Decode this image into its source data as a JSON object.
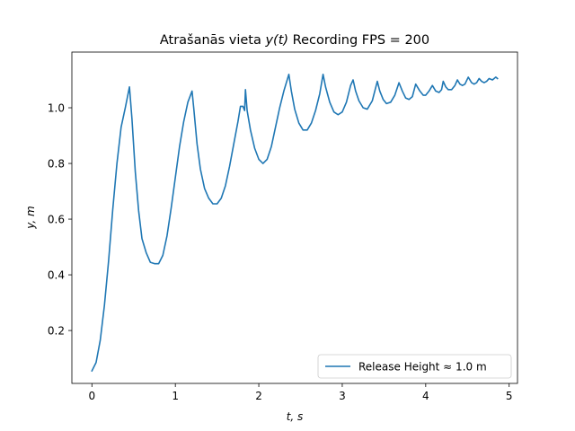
{
  "chart_data": {
    "type": "line",
    "title_prefix": "Atrašanās vieta ",
    "title_math": "y(t)",
    "title_suffix": " Recording FPS = 200",
    "xlabel": "t, s",
    "ylabel": "y, m",
    "xlim": [
      -0.24,
      5.1
    ],
    "ylim": [
      0.01,
      1.2
    ],
    "xticks": [
      0,
      1,
      2,
      3,
      4,
      5
    ],
    "xtick_labels": [
      "0",
      "1",
      "2",
      "3",
      "4",
      "5"
    ],
    "yticks": [
      0.2,
      0.4,
      0.6,
      0.8,
      1.0
    ],
    "ytick_labels": [
      "0.2",
      "0.4",
      "0.6",
      "0.8",
      "1.0"
    ],
    "grid": false,
    "legend_position": "lower-right",
    "line_color": "#1f77b4",
    "series": [
      {
        "name": "Release Height ≈ 1.0 m",
        "x": [
          0.0,
          0.05,
          0.1,
          0.15,
          0.2,
          0.25,
          0.3,
          0.35,
          0.4,
          0.45,
          0.48,
          0.52,
          0.56,
          0.6,
          0.65,
          0.7,
          0.75,
          0.8,
          0.85,
          0.9,
          0.95,
          1.0,
          1.05,
          1.1,
          1.15,
          1.2,
          1.22,
          1.26,
          1.3,
          1.35,
          1.4,
          1.45,
          1.5,
          1.55,
          1.6,
          1.65,
          1.7,
          1.75,
          1.78,
          1.81,
          1.83,
          1.84,
          1.86,
          1.9,
          1.95,
          2.0,
          2.05,
          2.1,
          2.15,
          2.2,
          2.25,
          2.3,
          2.36,
          2.39,
          2.43,
          2.48,
          2.53,
          2.58,
          2.63,
          2.68,
          2.73,
          2.77,
          2.8,
          2.85,
          2.9,
          2.95,
          3.0,
          3.05,
          3.1,
          3.13,
          3.16,
          3.2,
          3.25,
          3.3,
          3.36,
          3.42,
          3.45,
          3.49,
          3.53,
          3.58,
          3.63,
          3.68,
          3.72,
          3.76,
          3.8,
          3.84,
          3.88,
          3.93,
          3.97,
          4.0,
          4.04,
          4.08,
          4.12,
          4.16,
          4.19,
          4.21,
          4.24,
          4.27,
          4.31,
          4.35,
          4.38,
          4.41,
          4.44,
          4.47,
          4.51,
          4.55,
          4.58,
          4.61,
          4.64,
          4.67,
          4.7,
          4.73,
          4.76,
          4.8,
          4.84,
          4.86
        ],
        "y": [
          0.055,
          0.085,
          0.165,
          0.29,
          0.45,
          0.635,
          0.8,
          0.93,
          1.0,
          1.075,
          0.96,
          0.77,
          0.63,
          0.53,
          0.48,
          0.445,
          0.44,
          0.44,
          0.47,
          0.54,
          0.64,
          0.75,
          0.86,
          0.95,
          1.02,
          1.06,
          1.0,
          0.87,
          0.78,
          0.71,
          0.675,
          0.655,
          0.655,
          0.675,
          0.72,
          0.79,
          0.87,
          0.95,
          1.005,
          1.005,
          0.99,
          1.065,
          0.99,
          0.92,
          0.855,
          0.815,
          0.8,
          0.815,
          0.86,
          0.93,
          1.0,
          1.06,
          1.12,
          1.06,
          0.995,
          0.945,
          0.92,
          0.92,
          0.945,
          0.99,
          1.05,
          1.12,
          1.075,
          1.02,
          0.985,
          0.975,
          0.985,
          1.02,
          1.08,
          1.1,
          1.06,
          1.025,
          1.0,
          0.995,
          1.025,
          1.095,
          1.06,
          1.03,
          1.015,
          1.02,
          1.045,
          1.09,
          1.06,
          1.035,
          1.03,
          1.04,
          1.085,
          1.06,
          1.045,
          1.045,
          1.06,
          1.08,
          1.06,
          1.055,
          1.065,
          1.095,
          1.075,
          1.065,
          1.065,
          1.08,
          1.1,
          1.085,
          1.08,
          1.085,
          1.11,
          1.09,
          1.085,
          1.09,
          1.105,
          1.095,
          1.09,
          1.095,
          1.105,
          1.1,
          1.11,
          1.105
        ]
      }
    ]
  }
}
